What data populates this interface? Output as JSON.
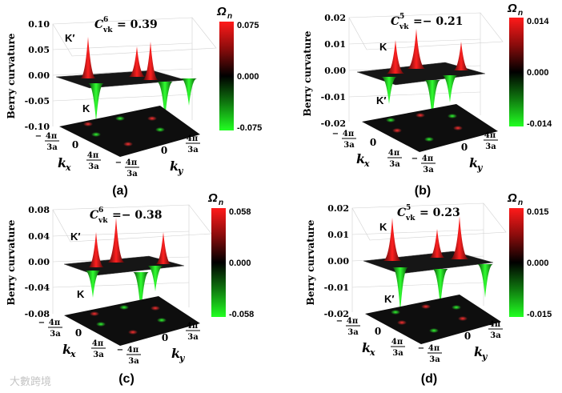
{
  "figure": {
    "watermark": "大數跨境",
    "panels": [
      {
        "id": "a",
        "caption": "(a)",
        "zlabel": "Berry curvature",
        "zticks": [
          "0.10",
          "0.05",
          "0.00",
          "-0.05",
          "-0.10"
        ],
        "chern_label": "C",
        "chern_sup": "6",
        "chern_sub": "vk",
        "chern_value": "= 0.39",
        "colorbar_title": "Ω",
        "colorbar_sub": "n",
        "colorbar_max": "0.075",
        "colorbar_mid": "0.000",
        "colorbar_min": "-0.075",
        "peak_labels": {
          "upper": "K′",
          "lower": "K"
        },
        "kx_label": "k",
        "kx_sub": "x",
        "ky_label": "k",
        "ky_sub": "y",
        "tick_pi": "4π",
        "tick_den": "3a",
        "tick_zero": "0",
        "tick_minus": "−"
      },
      {
        "id": "b",
        "caption": "(b)",
        "zlabel": "Berry curvature",
        "zticks": [
          "0.02",
          "0.01",
          "0.00",
          "-0.01",
          "-0.02"
        ],
        "chern_label": "C",
        "chern_sup": "5",
        "chern_sub": "vk",
        "chern_value": "=− 0.21",
        "colorbar_title": "Ω",
        "colorbar_sub": "n",
        "colorbar_max": "0.014",
        "colorbar_mid": "0.000",
        "colorbar_min": "-0.014",
        "peak_labels": {
          "upper": "K",
          "lower": "K′"
        },
        "kx_label": "k",
        "kx_sub": "x",
        "ky_label": "k",
        "ky_sub": "y",
        "tick_pi": "4π",
        "tick_den": "3a",
        "tick_zero": "0",
        "tick_minus": "−"
      },
      {
        "id": "c",
        "caption": "(c)",
        "zlabel": "Berry curvature",
        "zticks": [
          "0.08",
          "0.04",
          "0.00",
          "-0.04",
          "-0.08"
        ],
        "chern_label": "C",
        "chern_sup": "6",
        "chern_sub": "vk",
        "chern_value": "=− 0.38",
        "colorbar_title": "Ω",
        "colorbar_sub": "n",
        "colorbar_max": "0.058",
        "colorbar_mid": "0.000",
        "colorbar_min": "-0.058",
        "peak_labels": {
          "upper": "K′",
          "lower": "K"
        },
        "kx_label": "k",
        "kx_sub": "x",
        "ky_label": "k",
        "ky_sub": "y",
        "tick_pi": "4π",
        "tick_den": "3a",
        "tick_zero": "0",
        "tick_minus": "−"
      },
      {
        "id": "d",
        "caption": "(d)",
        "zlabel": "Berry curvature",
        "zticks": [
          "0.02",
          "0.01",
          "0.00",
          "-0.01",
          "-0.02"
        ],
        "chern_label": "C",
        "chern_sup": "5",
        "chern_sub": "vk",
        "chern_value": "= 0.23",
        "colorbar_title": "Ω",
        "colorbar_sub": "n",
        "colorbar_max": "0.015",
        "colorbar_mid": "0.000",
        "colorbar_min": "-0.015",
        "peak_labels": {
          "upper": "K",
          "lower": "K′"
        },
        "kx_label": "k",
        "kx_sub": "x",
        "ky_label": "k",
        "ky_sub": "y",
        "tick_pi": "4π",
        "tick_den": "3a",
        "tick_zero": "0",
        "tick_minus": "−"
      }
    ]
  }
}
